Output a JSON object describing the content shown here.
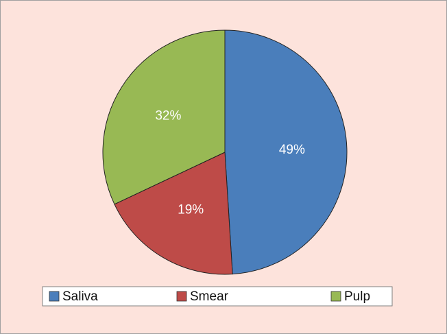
{
  "chart_data": {
    "type": "pie",
    "categories": [
      "Saliva",
      "Smear",
      "Pulp"
    ],
    "values": [
      49,
      19,
      32
    ],
    "value_labels": [
      "49%",
      "19%",
      "32%"
    ],
    "colors": [
      "#4a7ebb",
      "#be4b48",
      "#98b954"
    ],
    "legend": "bottom"
  }
}
